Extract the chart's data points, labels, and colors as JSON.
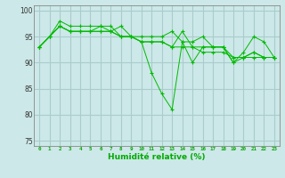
{
  "series": [
    [
      93,
      95,
      97,
      96,
      96,
      96,
      97,
      96,
      97,
      95,
      94,
      88,
      84,
      81,
      94,
      90,
      93,
      93,
      93,
      90,
      92,
      95,
      94,
      91
    ],
    [
      93,
      95,
      97,
      96,
      96,
      96,
      96,
      96,
      95,
      95,
      94,
      94,
      94,
      93,
      93,
      93,
      92,
      92,
      92,
      91,
      91,
      91,
      91,
      91
    ],
    [
      93,
      95,
      97,
      96,
      96,
      96,
      96,
      96,
      95,
      95,
      94,
      94,
      94,
      93,
      96,
      93,
      93,
      93,
      93,
      91,
      91,
      92,
      91,
      91
    ],
    [
      93,
      95,
      98,
      97,
      97,
      97,
      97,
      97,
      95,
      95,
      95,
      95,
      95,
      96,
      94,
      94,
      95,
      93,
      93,
      90,
      91,
      92,
      91,
      91
    ]
  ],
  "line_color": "#00bb00",
  "marker_color": "#00bb00",
  "background_color": "#cce8e8",
  "grid_color": "#aacccc",
  "axis_label_color": "#00aa00",
  "xlabel": "Humidité relative (%)",
  "ylim": [
    74,
    101
  ],
  "yticks": [
    75,
    80,
    85,
    90,
    95,
    100
  ],
  "ytick_labels": [
    "75",
    "80",
    "85",
    "90",
    "95",
    "100"
  ],
  "xlim": [
    -0.5,
    23.5
  ],
  "xticks": [
    0,
    1,
    2,
    3,
    4,
    5,
    6,
    7,
    8,
    9,
    10,
    11,
    12,
    13,
    14,
    15,
    16,
    17,
    18,
    19,
    20,
    21,
    22,
    23
  ]
}
